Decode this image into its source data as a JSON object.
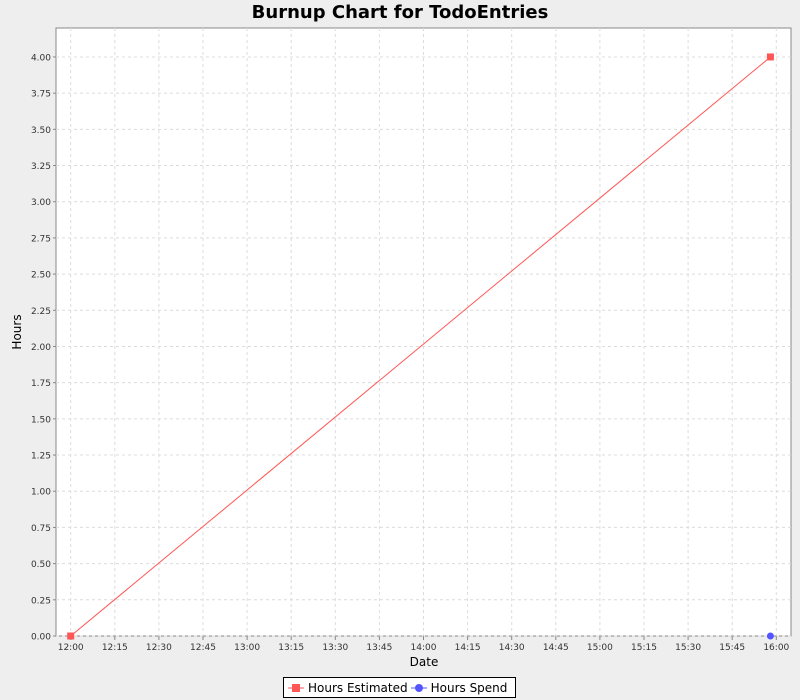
{
  "colors": {
    "background": "#eeeeee",
    "plot_background": "#ffffff",
    "grid": "#dcdcdc",
    "estimated": "#ff5555",
    "spend": "#5555ff"
  },
  "chart_data": {
    "type": "line",
    "title": "Burnup Chart for TodoEntries",
    "xlabel": "Date",
    "ylabel": "Hours",
    "xlim": [
      "11:55",
      "16:05"
    ],
    "ylim": [
      0,
      4.2
    ],
    "grid": true,
    "legend_position": "bottom",
    "x_ticks": [
      "12:00",
      "12:15",
      "12:30",
      "12:45",
      "13:00",
      "13:15",
      "13:30",
      "13:45",
      "14:00",
      "14:15",
      "14:30",
      "14:45",
      "15:00",
      "15:15",
      "15:30",
      "15:45",
      "16:00"
    ],
    "y_ticks": [
      "0.00",
      "0.25",
      "0.50",
      "0.75",
      "1.00",
      "1.25",
      "1.50",
      "1.75",
      "2.00",
      "2.25",
      "2.50",
      "2.75",
      "3.00",
      "3.25",
      "3.50",
      "3.75",
      "4.00"
    ],
    "series": [
      {
        "name": "Hours Estimated",
        "marker": "square",
        "color": "#ff5555",
        "points": [
          {
            "x": "12:00",
            "y": 0
          },
          {
            "x": "15:58",
            "y": 4.0
          }
        ]
      },
      {
        "name": "Hours Spend",
        "marker": "circle",
        "color": "#5555ff",
        "points": [
          {
            "x": "15:58",
            "y": 0
          }
        ]
      }
    ]
  }
}
